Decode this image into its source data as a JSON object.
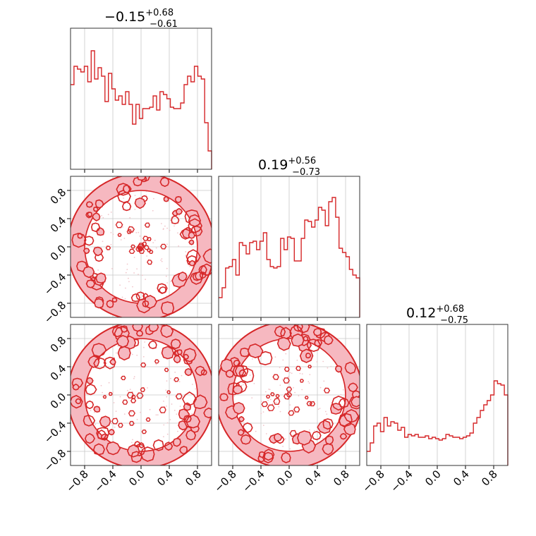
{
  "chart_data": {
    "type": "corner",
    "accent_color": "#d62728",
    "axis_ticks": [
      "−0.8",
      "−0.4",
      "0.0",
      "0.4",
      "0.8"
    ],
    "tick_values": [
      -0.8,
      -0.4,
      0.0,
      0.4,
      0.8
    ],
    "axis_range": [
      -1.0,
      1.0
    ],
    "grid": true,
    "parameters": [
      {
        "median": "−0.15",
        "plus": "+0.68",
        "minus": "−0.61"
      },
      {
        "median": "0.19",
        "plus": "+0.56",
        "minus": "−0.73"
      },
      {
        "median": "0.12",
        "plus": "+0.68",
        "minus": "−0.75"
      }
    ],
    "histograms": [
      [
        0.6,
        0.73,
        0.71,
        0.69,
        0.73,
        0.62,
        0.84,
        0.64,
        0.72,
        0.66,
        0.48,
        0.68,
        0.57,
        0.49,
        0.52,
        0.46,
        0.55,
        0.46,
        0.32,
        0.46,
        0.36,
        0.43,
        0.43,
        0.44,
        0.52,
        0.42,
        0.55,
        0.53,
        0.5,
        0.44,
        0.43,
        0.43,
        0.47,
        0.6,
        0.66,
        0.62,
        0.73,
        0.66,
        0.64,
        0.33,
        0.13
      ],
      [
        0.14,
        0.21,
        0.35,
        0.36,
        0.41,
        0.3,
        0.53,
        0.51,
        0.45,
        0.53,
        0.54,
        0.48,
        0.54,
        0.6,
        0.41,
        0.36,
        0.35,
        0.36,
        0.56,
        0.48,
        0.57,
        0.56,
        0.4,
        0.4,
        0.56,
        0.69,
        0.68,
        0.64,
        0.69,
        0.78,
        0.76,
        0.65,
        0.82,
        0.85,
        0.71,
        0.49,
        0.46,
        0.43,
        0.34,
        0.3,
        0.28
      ],
      [
        0.1,
        0.16,
        0.28,
        0.3,
        0.24,
        0.34,
        0.28,
        0.31,
        0.3,
        0.25,
        0.27,
        0.2,
        0.22,
        0.21,
        0.22,
        0.2,
        0.2,
        0.21,
        0.19,
        0.2,
        0.19,
        0.18,
        0.19,
        0.22,
        0.21,
        0.2,
        0.2,
        0.19,
        0.2,
        0.21,
        0.23,
        0.3,
        0.34,
        0.39,
        0.43,
        0.46,
        0.5,
        0.6,
        0.58,
        0.57,
        0.5
      ]
    ]
  }
}
